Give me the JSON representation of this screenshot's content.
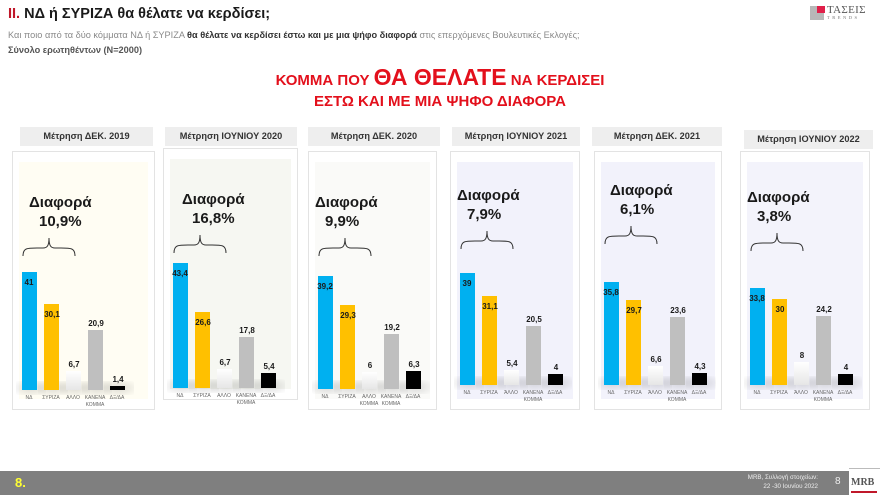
{
  "header": {
    "roman": "II.",
    "title": "ΝΔ  ή ΣΥΡΙΖΑ θα θέλατε να κερδίσει;",
    "subtitle_pre": "Και ποιο από τα δύο κόμματα ΝΔ ή ΣΥΡΙΖΑ ",
    "subtitle_bold": "θα θέλατε να κερδίσει έστω και με μια ψήφο διαφορά",
    "subtitle_post": " στις επερχόμενες Βουλευτικές Εκλογές;",
    "sample": "Σύνολο ερωτηθέντων (N=2000)"
  },
  "logo": {
    "line1": "ΤΑΣΕΙΣ",
    "line2": "TRENDS"
  },
  "headline": {
    "line1_pre": "ΚΟΜΜΑ ΠΟΥ ",
    "line1_big": "ΘΑ ΘΕΛΑΤΕ",
    "line1_post": " ΝΑ ΚΕΡΔΙΣΕΙ",
    "line2": "ΕΣΤΩ ΚΑΙ ΜΕ ΜΙΑ ΨΗΦΟ ΔΙΑΦΟΡΑ"
  },
  "diff_label": "Διαφορά",
  "colors": {
    "nd": "#00b0f0",
    "syriza": "#ffc000",
    "other": "#f2f2f2",
    "none": "#bfbfbf",
    "dk": "#000000",
    "headline": "#e3101c",
    "footer": "#7f7f7f",
    "page_number": "#ffff33"
  },
  "chart_data": [
    {
      "type": "bar",
      "title": "Μέτρηση ΔΕΚ. 2019",
      "annotation": "Διαφορά 10,9%",
      "categories": [
        "ΝΔ",
        "ΣΥΡΙΖΑ",
        "ΑΛΛΟ",
        "ΚΑΝΕΝΑ ΚΟΜΜΑ",
        "ΔΞ/ΔΑ"
      ],
      "values": [
        41,
        30.1,
        6.7,
        20.9,
        1.4
      ],
      "labels": [
        "41",
        "30,1",
        "6,7",
        "20,9",
        "1,4"
      ],
      "xlabel": "",
      "ylabel": "",
      "ylim": [
        0,
        45
      ],
      "grid": false
    },
    {
      "type": "bar",
      "title": "Μέτρηση ΙΟΥΝΙΟΥ 2020",
      "annotation": "Διαφορά 16,8%",
      "categories": [
        "ΝΔ",
        "ΣΥΡΙΖΑ",
        "ΑΛΛΟ",
        "ΚΑΝΕΝΑ ΚΟΜΜΑ",
        "ΔΞ/ΔΑ"
      ],
      "values": [
        43.4,
        26.6,
        6.7,
        17.8,
        5.4
      ],
      "labels": [
        "43,4",
        "26,6",
        "6,7",
        "17,8",
        "5,4"
      ],
      "xlabel": "",
      "ylabel": "",
      "ylim": [
        0,
        45
      ],
      "grid": false
    },
    {
      "type": "bar",
      "title": "Μέτρηση ΔΕΚ. 2020",
      "annotation": "Διαφορά 9,9%",
      "categories": [
        "ΝΔ",
        "ΣΥΡΙΖΑ",
        "ΑΛΛΟ ΚΟΜΜΑ",
        "ΚΑΝΕΝΑ ΚΟΜΜΑ",
        "ΔΞ/ΔΑ"
      ],
      "values": [
        39.2,
        29.3,
        6,
        19.2,
        6.3
      ],
      "labels": [
        "39,2",
        "29,3",
        "6",
        "19,2",
        "6,3"
      ],
      "xlabel": "",
      "ylabel": "",
      "ylim": [
        0,
        45
      ],
      "grid": false
    },
    {
      "type": "bar",
      "title": "Μέτρηση ΙΟΥΝΙΟΥ 2021",
      "annotation": "Διαφορά 7,9%",
      "categories": [
        "ΝΔ",
        "ΣΥΡΙΖΑ",
        "ΆΛΛΟ",
        "ΚΑΝΕΝΑ ΚΟΜΜΑ",
        "ΔΞ/ΔΑ"
      ],
      "values": [
        39,
        31.1,
        5.4,
        20.5,
        4
      ],
      "labels": [
        "39",
        "31,1",
        "5,4",
        "20,5",
        "4"
      ],
      "xlabel": "",
      "ylabel": "",
      "ylim": [
        0,
        45
      ],
      "grid": false
    },
    {
      "type": "bar",
      "title": "Μέτρηση ΔΕΚ. 2021",
      "annotation": "Διαφορά 6,1%",
      "categories": [
        "ΝΔ",
        "ΣΥΡΙΖΑ",
        "ΆΛΛΟ",
        "ΚΑΝΕΝΑ ΚΟΜΜΑ",
        "ΔΞ/ΔΑ"
      ],
      "values": [
        35.8,
        29.7,
        6.6,
        23.6,
        4.3
      ],
      "labels": [
        "35,8",
        "29,7",
        "6,6",
        "23,6",
        "4,3"
      ],
      "xlabel": "",
      "ylabel": "",
      "ylim": [
        0,
        45
      ],
      "grid": false
    },
    {
      "type": "bar",
      "title": "Μέτρηση ΙΟΥΝΙΟΥ 2022",
      "annotation": "Διαφορά 3,8%",
      "categories": [
        "ΝΔ",
        "ΣΥΡΙΖΑ",
        "ΆΛΛΟ",
        "ΚΑΝΕΝΑ ΚΟΜΜΑ",
        "ΔΞ/ΔΑ"
      ],
      "values": [
        33.8,
        30,
        8,
        24.2,
        4
      ],
      "labels": [
        "33,8",
        "30",
        "8",
        "24,2",
        "4"
      ],
      "xlabel": "",
      "ylabel": "",
      "ylim": [
        0,
        45
      ],
      "grid": false
    }
  ],
  "panels": [
    {
      "title": "Μέτρηση ΔΕΚ. 2019",
      "diff": "10,9%"
    },
    {
      "title": "Μέτρηση ΙΟΥΝΙΟΥ 2020",
      "diff": "16,8%"
    },
    {
      "title": "Μέτρηση ΔΕΚ. 2020",
      "diff": "9,9%"
    },
    {
      "title": "Μέτρηση ΙΟΥΝΙΟΥ 2021",
      "diff": "7,9%"
    },
    {
      "title": "Μέτρηση ΔΕΚ. 2021",
      "diff": "6,1%"
    },
    {
      "title": "Μέτρηση ΙΟΥΝΙΟΥ 2022",
      "diff": "3,8%"
    }
  ],
  "footer": {
    "slide_number": "8.",
    "source_line1": "MRB, Συλλογή στοιχείων:",
    "source_line2": "22 -30 Ιουνίου 2022",
    "page": "8",
    "brand": "MRB"
  }
}
